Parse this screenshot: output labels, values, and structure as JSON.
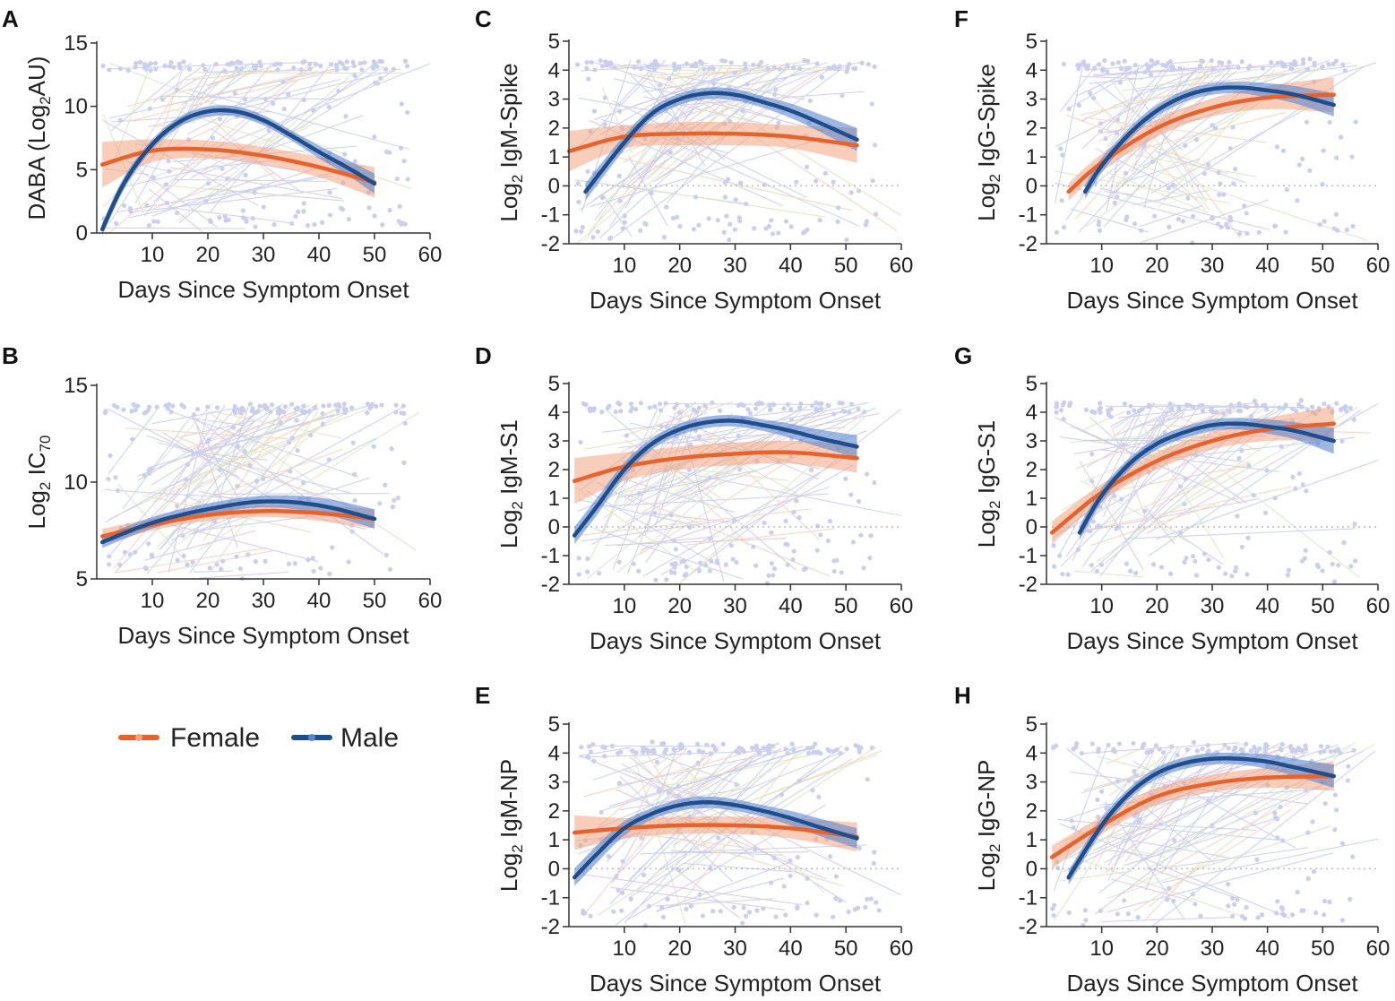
{
  "colors": {
    "female": "#e8622b",
    "female_band": "#f2a47f",
    "male": "#1f4e8c",
    "male_band": "#5b86cf",
    "raw_points": "#b8bfe6",
    "axis": "#333333",
    "zero_line": "#bbbbbb"
  },
  "legend": {
    "female_label": "Female",
    "male_label": "Male"
  },
  "chart_data": [
    {
      "id": "A",
      "letter": "A",
      "type": "line",
      "ylabel": "DABA (Log",
      "ylabel_sub": "2",
      "ylabel_suffix": "AU)",
      "xlabel": "Days Since Symptom Onset",
      "xlim": [
        0,
        60
      ],
      "ylim": [
        0,
        15
      ],
      "xticks": [
        10,
        20,
        30,
        40,
        50,
        60
      ],
      "yticks": [
        0,
        5,
        10,
        15
      ],
      "zero_line": false,
      "series": [
        {
          "name": "Female",
          "x": [
            1,
            10,
            20,
            30,
            40,
            50
          ],
          "y": [
            5.4,
            6.5,
            6.6,
            6.1,
            5.2,
            4.0
          ],
          "band": [
            1.8,
            0.9,
            0.7,
            0.7,
            0.8,
            1.2
          ]
        },
        {
          "name": "Male",
          "x": [
            1,
            5,
            10,
            15,
            20,
            25,
            30,
            35,
            40,
            45,
            50
          ],
          "y": [
            0.3,
            4.0,
            7.0,
            8.8,
            9.6,
            9.6,
            8.9,
            7.7,
            6.4,
            5.2,
            3.9
          ],
          "band": [
            0.5,
            0.5,
            0.4,
            0.4,
            0.4,
            0.4,
            0.4,
            0.4,
            0.5,
            0.6,
            0.8
          ]
        }
      ]
    },
    {
      "id": "B",
      "letter": "B",
      "type": "line",
      "ylabel": "Log",
      "ylabel_sub": "2",
      "ylabel_suffix": " IC",
      "ylabel_sub2": "70",
      "xlabel": "Days Since Symptom Onset",
      "xlim": [
        0,
        60
      ],
      "ylim": [
        5,
        15
      ],
      "xticks": [
        10,
        20,
        30,
        40,
        50,
        60
      ],
      "yticks": [
        5,
        10,
        15
      ],
      "zero_line": false,
      "series": [
        {
          "name": "Female",
          "x": [
            1,
            10,
            20,
            30,
            40,
            50
          ],
          "y": [
            7.2,
            7.8,
            8.3,
            8.5,
            8.4,
            8.1
          ],
          "band": [
            0.4,
            0.3,
            0.3,
            0.3,
            0.4,
            0.5
          ]
        },
        {
          "name": "Male",
          "x": [
            1,
            10,
            20,
            30,
            40,
            50
          ],
          "y": [
            6.9,
            7.9,
            8.6,
            9.0,
            8.8,
            8.1
          ],
          "band": [
            0.3,
            0.3,
            0.3,
            0.3,
            0.4,
            0.5
          ]
        }
      ]
    },
    {
      "id": "C",
      "letter": "C",
      "type": "line",
      "ylabel": "Log",
      "ylabel_sub": "2",
      "ylabel_suffix": " IgM-Spike",
      "xlabel": "Days Since Symptom Onset",
      "xlim": [
        0,
        60
      ],
      "ylim": [
        -2,
        5
      ],
      "xticks": [
        10,
        20,
        30,
        40,
        50,
        60
      ],
      "yticks": [
        -2,
        -1,
        0,
        1,
        2,
        3,
        4,
        5
      ],
      "zero_line": true,
      "series": [
        {
          "name": "Female",
          "x": [
            0,
            10,
            20,
            30,
            40,
            52
          ],
          "y": [
            1.2,
            1.7,
            1.8,
            1.8,
            1.7,
            1.4
          ],
          "band": [
            0.7,
            0.4,
            0.4,
            0.4,
            0.4,
            0.6
          ]
        },
        {
          "name": "Male",
          "x": [
            3,
            10,
            15,
            20,
            25,
            30,
            35,
            40,
            45,
            52
          ],
          "y": [
            -0.2,
            1.5,
            2.5,
            3.0,
            3.2,
            3.15,
            2.9,
            2.6,
            2.2,
            1.6
          ],
          "band": [
            0.3,
            0.25,
            0.2,
            0.2,
            0.2,
            0.2,
            0.2,
            0.25,
            0.3,
            0.4
          ]
        }
      ]
    },
    {
      "id": "D",
      "letter": "D",
      "type": "line",
      "ylabel": "Log",
      "ylabel_sub": "2",
      "ylabel_suffix": " IgM-S1",
      "xlabel": "Days Since Symptom Onset",
      "xlim": [
        0,
        60
      ],
      "ylim": [
        -2,
        5
      ],
      "xticks": [
        10,
        20,
        30,
        40,
        50,
        60
      ],
      "yticks": [
        -2,
        -1,
        0,
        1,
        2,
        3,
        4,
        5
      ],
      "zero_line": true,
      "series": [
        {
          "name": "Female",
          "x": [
            1,
            10,
            20,
            30,
            40,
            52
          ],
          "y": [
            1.6,
            2.1,
            2.4,
            2.55,
            2.6,
            2.4
          ],
          "band": [
            0.8,
            0.5,
            0.4,
            0.4,
            0.4,
            0.5
          ]
        },
        {
          "name": "Male",
          "x": [
            1,
            5,
            10,
            15,
            20,
            25,
            30,
            35,
            40,
            45,
            52
          ],
          "y": [
            -0.3,
            0.7,
            2.0,
            2.9,
            3.4,
            3.65,
            3.7,
            3.55,
            3.35,
            3.1,
            2.8
          ],
          "band": [
            0.3,
            0.3,
            0.25,
            0.2,
            0.2,
            0.2,
            0.2,
            0.2,
            0.25,
            0.3,
            0.4
          ]
        }
      ]
    },
    {
      "id": "E",
      "letter": "E",
      "type": "line",
      "ylabel": "Log",
      "ylabel_sub": "2",
      "ylabel_suffix": " IgM-NP",
      "xlabel": "Days Since Symptom Onset",
      "xlim": [
        0,
        60
      ],
      "ylim": [
        -2,
        5
      ],
      "xticks": [
        10,
        20,
        30,
        40,
        50,
        60
      ],
      "yticks": [
        -2,
        -1,
        0,
        1,
        2,
        3,
        4,
        5
      ],
      "zero_line": true,
      "series": [
        {
          "name": "Female",
          "x": [
            1,
            10,
            20,
            30,
            40,
            52
          ],
          "y": [
            1.25,
            1.4,
            1.5,
            1.5,
            1.4,
            1.1
          ],
          "band": [
            0.6,
            0.35,
            0.3,
            0.3,
            0.35,
            0.5
          ]
        },
        {
          "name": "Male",
          "x": [
            1,
            5,
            10,
            15,
            20,
            25,
            30,
            35,
            40,
            45,
            52
          ],
          "y": [
            -0.3,
            0.5,
            1.4,
            1.9,
            2.2,
            2.3,
            2.2,
            2.0,
            1.75,
            1.45,
            1.05
          ],
          "band": [
            0.3,
            0.3,
            0.25,
            0.2,
            0.2,
            0.2,
            0.2,
            0.2,
            0.25,
            0.3,
            0.35
          ]
        }
      ]
    },
    {
      "id": "F",
      "letter": "F",
      "type": "line",
      "ylabel": "Log",
      "ylabel_sub": "2",
      "ylabel_suffix": " IgG-Spike",
      "xlabel": "Days Since Symptom Onset",
      "xlim": [
        0,
        60
      ],
      "ylim": [
        -2,
        5
      ],
      "xticks": [
        10,
        20,
        30,
        40,
        50,
        60
      ],
      "yticks": [
        -2,
        -1,
        0,
        1,
        2,
        3,
        4,
        5
      ],
      "zero_line": true,
      "series": [
        {
          "name": "Female",
          "x": [
            4,
            10,
            20,
            30,
            40,
            52
          ],
          "y": [
            -0.2,
            0.8,
            2.0,
            2.7,
            3.05,
            3.15
          ],
          "band": [
            0.3,
            0.3,
            0.3,
            0.3,
            0.4,
            0.6
          ]
        },
        {
          "name": "Male",
          "x": [
            7,
            10,
            15,
            20,
            25,
            30,
            35,
            40,
            45,
            52
          ],
          "y": [
            -0.2,
            0.7,
            1.8,
            2.6,
            3.1,
            3.35,
            3.4,
            3.3,
            3.15,
            2.8
          ],
          "band": [
            0.25,
            0.25,
            0.2,
            0.2,
            0.2,
            0.2,
            0.2,
            0.25,
            0.3,
            0.4
          ]
        }
      ]
    },
    {
      "id": "G",
      "letter": "G",
      "type": "line",
      "ylabel": "Log",
      "ylabel_sub": "2",
      "ylabel_suffix": " IgG-S1",
      "xlabel": "Days Since Symptom Onset",
      "xlim": [
        0,
        60
      ],
      "ylim": [
        -2,
        5
      ],
      "xticks": [
        10,
        20,
        30,
        40,
        50,
        60
      ],
      "yticks": [
        -2,
        -1,
        0,
        1,
        2,
        3,
        4,
        5
      ],
      "zero_line": true,
      "series": [
        {
          "name": "Female",
          "x": [
            1,
            10,
            20,
            30,
            40,
            52
          ],
          "y": [
            -0.2,
            1.2,
            2.3,
            3.0,
            3.4,
            3.6
          ],
          "band": [
            0.4,
            0.3,
            0.3,
            0.3,
            0.4,
            0.6
          ]
        },
        {
          "name": "Male",
          "x": [
            6,
            10,
            15,
            20,
            25,
            30,
            35,
            40,
            45,
            52
          ],
          "y": [
            -0.2,
            1.1,
            2.2,
            2.9,
            3.3,
            3.55,
            3.6,
            3.5,
            3.35,
            3.0
          ],
          "band": [
            0.25,
            0.25,
            0.2,
            0.2,
            0.2,
            0.2,
            0.2,
            0.25,
            0.3,
            0.45
          ]
        }
      ]
    },
    {
      "id": "H",
      "letter": "H",
      "type": "line",
      "ylabel": "Log",
      "ylabel_sub": "2",
      "ylabel_suffix": " IgG-NP",
      "xlabel": "Days Since Symptom Onset",
      "xlim": [
        0,
        60
      ],
      "ylim": [
        -2,
        5
      ],
      "xticks": [
        10,
        20,
        30,
        40,
        50,
        60
      ],
      "yticks": [
        -2,
        -1,
        0,
        1,
        2,
        3,
        4,
        5
      ],
      "zero_line": true,
      "series": [
        {
          "name": "Female",
          "x": [
            1,
            10,
            20,
            30,
            40,
            52
          ],
          "y": [
            0.4,
            1.5,
            2.5,
            2.95,
            3.15,
            3.2
          ],
          "band": [
            0.4,
            0.3,
            0.3,
            0.3,
            0.35,
            0.5
          ]
        },
        {
          "name": "Male",
          "x": [
            4,
            10,
            15,
            20,
            25,
            30,
            35,
            40,
            45,
            52
          ],
          "y": [
            -0.3,
            1.5,
            2.6,
            3.3,
            3.65,
            3.8,
            3.8,
            3.7,
            3.5,
            3.2
          ],
          "band": [
            0.25,
            0.25,
            0.2,
            0.2,
            0.2,
            0.2,
            0.2,
            0.25,
            0.3,
            0.4
          ]
        }
      ]
    }
  ]
}
